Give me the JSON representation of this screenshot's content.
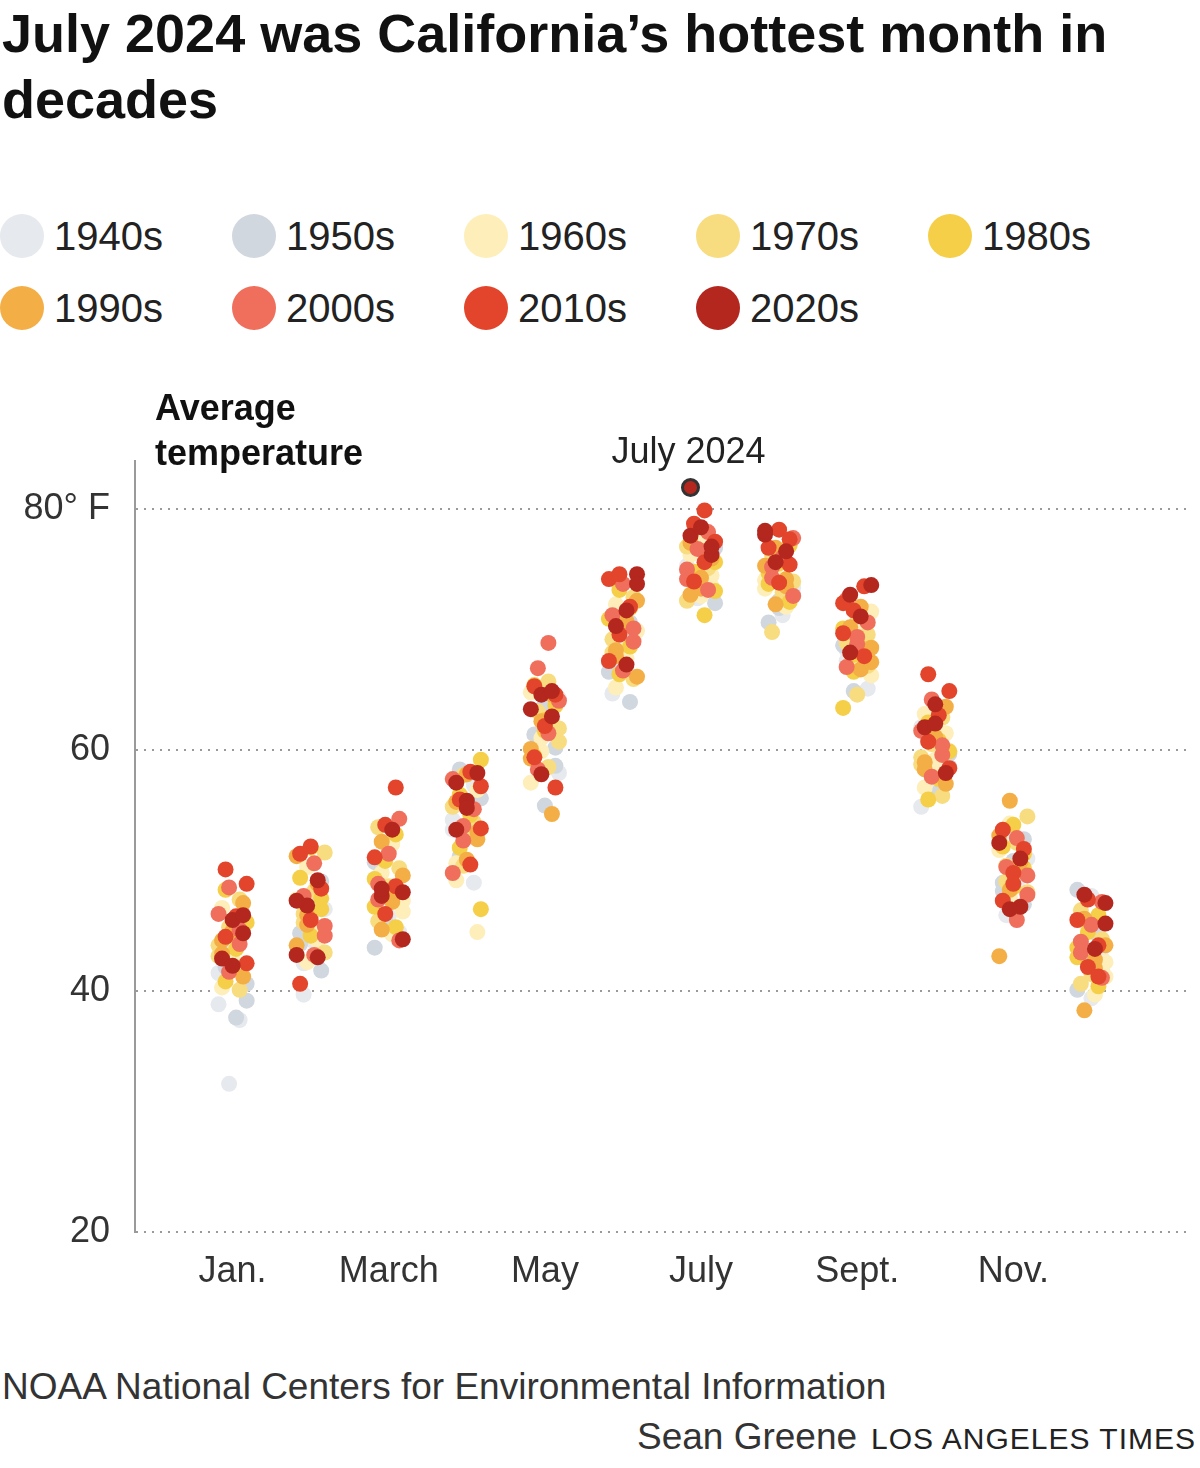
{
  "chart_data": {
    "type": "scatter",
    "title": "July 2024 was California’s hottest month in decades",
    "y_label": "Average temperature",
    "source": "NOAA National Centers for Environmental Information",
    "credit": "Sean Greene",
    "publisher": "LOS ANGELES TIMES",
    "categories": [
      "Jan.",
      null,
      "March",
      null,
      "May",
      null,
      "July",
      null,
      "Sept.",
      null,
      "Nov.",
      null
    ],
    "ylim": [
      20,
      84
    ],
    "yticks": [
      20,
      40,
      60,
      {
        "value": 80,
        "label": "80° F"
      }
    ],
    "grid": true,
    "legend": "top",
    "annotation": {
      "text": "July 2024",
      "series": "2020s",
      "category": "July",
      "point": 4
    },
    "series": [
      {
        "name": "1940s",
        "color": "#e6e9ed",
        "values": [
          [
            38.9,
            32.3,
            37.6,
            41.5,
            43.2
          ],
          [
            39.7,
            44.1,
            46.8,
            42.3,
            48.0
          ],
          [
            46.2,
            44.9,
            49.5,
            51.8,
            47.3
          ],
          [
            49.0,
            53.4,
            55.8,
            57.1,
            54.2
          ],
          [
            58.1,
            60.4,
            62.7,
            64.3,
            61.2
          ],
          [
            64.7,
            66.9,
            69.3,
            71.0,
            68.2
          ],
          [
            72.6,
            74.1,
            75.3,
            76.4,
            73.8
          ],
          [
            71.2,
            72.9,
            74.6,
            75.8,
            73.5
          ],
          [
            65.1,
            67.4,
            69.0,
            70.8,
            68.3
          ],
          [
            55.3,
            58.0,
            60.2,
            61.9,
            57.4
          ],
          [
            46.3,
            48.8,
            51.0,
            53.2,
            49.5
          ],
          [
            39.4,
            41.8,
            44.0,
            47.9,
            42.7
          ]
        ]
      },
      {
        "name": "1950s",
        "color": "#d0d7df",
        "values": [
          [
            37.8,
            39.2,
            42.0,
            44.3,
            40.6
          ],
          [
            41.7,
            43.9,
            46.2,
            49.1,
            44.8
          ],
          [
            43.6,
            46.1,
            48.4,
            50.7,
            45.2
          ],
          [
            51.2,
            53.8,
            56.0,
            58.4,
            54.9
          ],
          [
            55.4,
            58.7,
            61.3,
            63.9,
            60.2
          ],
          [
            64.0,
            66.5,
            68.8,
            70.6,
            67.3
          ],
          [
            72.2,
            73.9,
            75.0,
            76.8,
            74.4
          ],
          [
            70.6,
            71.8,
            73.2,
            75.1,
            72.4
          ],
          [
            64.9,
            66.8,
            68.7,
            70.3,
            67.6
          ],
          [
            56.5,
            58.6,
            60.8,
            63.4,
            59.7
          ],
          [
            47.2,
            49.0,
            50.8,
            52.6,
            48.3
          ],
          [
            40.1,
            42.5,
            44.6,
            48.4,
            43.3
          ]
        ]
      },
      {
        "name": "1960s",
        "color": "#fdeeba",
        "values": [
          [
            40.3,
            42.6,
            44.8,
            46.9,
            41.7
          ],
          [
            42.4,
            45.0,
            47.6,
            50.3,
            44.2
          ],
          [
            44.7,
            47.5,
            49.8,
            52.2,
            46.6
          ],
          [
            44.9,
            50.6,
            53.1,
            56.7,
            49.2
          ],
          [
            57.3,
            59.9,
            62.1,
            64.8,
            61.0
          ],
          [
            65.2,
            67.6,
            69.9,
            72.1,
            68.4
          ],
          [
            72.8,
            74.5,
            76.2,
            77.4,
            73.6
          ],
          [
            71.9,
            73.4,
            75.2,
            76.6,
            74.1
          ],
          [
            66.2,
            68.0,
            69.8,
            71.5,
            67.1
          ],
          [
            56.9,
            59.2,
            61.4,
            63.0,
            58.3
          ],
          [
            47.8,
            49.9,
            51.7,
            53.9,
            50.6
          ],
          [
            39.7,
            41.2,
            43.5,
            45.8,
            42.4
          ]
        ]
      },
      {
        "name": "1970s",
        "color": "#f8dc80",
        "values": [
          [
            40.1,
            42.9,
            45.3,
            47.6,
            43.8
          ],
          [
            43.2,
            45.7,
            48.3,
            51.5,
            46.4
          ],
          [
            45.8,
            47.9,
            50.2,
            53.6,
            48.7
          ],
          [
            50.4,
            52.8,
            55.3,
            57.9,
            54.0
          ],
          [
            58.6,
            60.7,
            63.2,
            65.7,
            61.8
          ],
          [
            65.9,
            68.1,
            70.4,
            72.7,
            69.2
          ],
          [
            72.4,
            73.7,
            75.1,
            76.9,
            74.6
          ],
          [
            69.8,
            72.6,
            74.0,
            76.2,
            73.1
          ],
          [
            64.6,
            67.0,
            68.9,
            71.2,
            69.6
          ],
          [
            56.2,
            58.8,
            60.5,
            62.7,
            59.4
          ],
          [
            48.2,
            50.4,
            52.3,
            54.5,
            49.1
          ],
          [
            40.6,
            42.1,
            44.3,
            46.7,
            41.4
          ]
        ]
      },
      {
        "name": "1980s",
        "color": "#f5cf48",
        "values": [
          [
            40.8,
            43.5,
            45.7,
            48.4,
            44.6
          ],
          [
            44.6,
            46.8,
            49.4,
            51.9,
            47.7
          ],
          [
            45.3,
            47.0,
            50.8,
            53.0,
            49.3
          ],
          [
            46.8,
            51.9,
            54.6,
            59.2,
            56.3
          ],
          [
            59.5,
            61.6,
            63.7,
            65.4,
            62.5
          ],
          [
            66.3,
            68.6,
            70.9,
            73.3,
            71.8
          ],
          [
            71.2,
            73.2,
            74.8,
            76.5,
            75.6
          ],
          [
            72.3,
            73.8,
            75.5,
            77.0,
            74.7
          ],
          [
            63.5,
            66.5,
            68.4,
            70.1,
            67.9
          ],
          [
            55.9,
            57.6,
            59.9,
            62.3,
            60.8
          ],
          [
            48.6,
            50.2,
            52.0,
            53.8,
            51.4
          ],
          [
            40.4,
            42.8,
            44.9,
            46.3,
            43.6
          ]
        ]
      },
      {
        "name": "1990s",
        "color": "#f4ae46",
        "values": [
          [
            41.2,
            43.1,
            45.0,
            47.3,
            44.2
          ],
          [
            43.8,
            46.3,
            48.9,
            51.2,
            45.5
          ],
          [
            45.1,
            47.4,
            49.6,
            52.4,
            48.1
          ],
          [
            50.9,
            53.2,
            55.7,
            58.0,
            52.6
          ],
          [
            54.7,
            60.1,
            62.4,
            64.6,
            59.3
          ],
          [
            66.1,
            68.3,
            70.7,
            72.4,
            67.8
          ],
          [
            72.9,
            74.3,
            75.9,
            77.2,
            73.4
          ],
          [
            72.1,
            73.6,
            75.3,
            76.8,
            74.2
          ],
          [
            66.7,
            68.5,
            70.2,
            71.9,
            67.3
          ],
          [
            57.2,
            59.0,
            61.1,
            63.6,
            58.4
          ],
          [
            42.9,
            48.4,
            50.7,
            52.9,
            55.8
          ],
          [
            38.4,
            41.9,
            43.8,
            46.0,
            42.6
          ]
        ]
      },
      {
        "name": "2000s",
        "color": "#ef6f5c",
        "values": [
          [
            41.6,
            43.9,
            46.4,
            48.6,
            45.1
          ],
          [
            43.0,
            45.4,
            47.9,
            50.6,
            44.6
          ],
          [
            44.2,
            48.9,
            51.4,
            54.3,
            47.6
          ],
          [
            49.8,
            52.5,
            55.1,
            57.6,
            53.7
          ],
          [
            58.4,
            61.4,
            64.1,
            66.8,
            68.9
          ],
          [
            66.6,
            69.0,
            71.2,
            73.8,
            70.1
          ],
          [
            73.3,
            75.0,
            76.7,
            78.1,
            74.2
          ],
          [
            72.8,
            74.3,
            76.0,
            77.6,
            75.2
          ],
          [
            66.9,
            68.8,
            70.6,
            72.5,
            69.4
          ],
          [
            57.8,
            59.6,
            61.6,
            64.2,
            60.4
          ],
          [
            45.9,
            48.0,
            50.3,
            52.7,
            49.6
          ],
          [
            41.1,
            43.2,
            45.5,
            47.4,
            44.1
          ]
        ]
      },
      {
        "name": "2010s",
        "color": "#e2452b",
        "values": [
          [
            42.3,
            44.5,
            46.2,
            48.9,
            50.1
          ],
          [
            40.6,
            45.9,
            48.5,
            51.4,
            52.0
          ],
          [
            46.4,
            48.7,
            51.1,
            53.8,
            56.9
          ],
          [
            50.5,
            53.5,
            55.9,
            58.2,
            57.0
          ],
          [
            56.9,
            59.4,
            62.0,
            64.6,
            65.3
          ],
          [
            67.4,
            69.6,
            71.9,
            74.2,
            74.6
          ],
          [
            74.0,
            75.6,
            77.3,
            78.8,
            79.9
          ],
          [
            73.9,
            75.4,
            76.8,
            78.3,
            77.5
          ],
          [
            67.8,
            69.7,
            71.6,
            73.6,
            72.2
          ],
          [
            58.5,
            60.7,
            62.9,
            64.9,
            66.3
          ],
          [
            47.5,
            49.8,
            51.8,
            53.4,
            48.9
          ],
          [
            42.0,
            43.8,
            45.9,
            47.6,
            41.2
          ]
        ]
      },
      {
        "name": "2020s",
        "color": "#b3271f",
        "values": [
          [
            45.9,
            44.8,
            42.7,
            42.1,
            46.3
          ],
          [
            49.2,
            43.0,
            47.1,
            42.8,
            47.5
          ],
          [
            48.2,
            47.9,
            53.4,
            44.3,
            48.5
          ],
          [
            57.3,
            55.8,
            58.1,
            53.4,
            55.2
          ],
          [
            64.6,
            62.8,
            63.4,
            58.0,
            64.9
          ],
          [
            71.6,
            74.6,
            70.3,
            67.1,
            73.8
          ],
          [
            76.2,
            77.8,
            78.5,
            76.9,
            81.8
          ],
          [
            77.9,
            75.6,
            76.5,
            78.2
          ],
          [
            72.9,
            71.1,
            73.7,
            68.1
          ],
          [
            63.8,
            58.1,
            61.9,
            62.2
          ],
          [
            47.0,
            52.3,
            46.8,
            51.0
          ],
          [
            45.6,
            48.0,
            43.5,
            47.3
          ]
        ]
      }
    ]
  }
}
